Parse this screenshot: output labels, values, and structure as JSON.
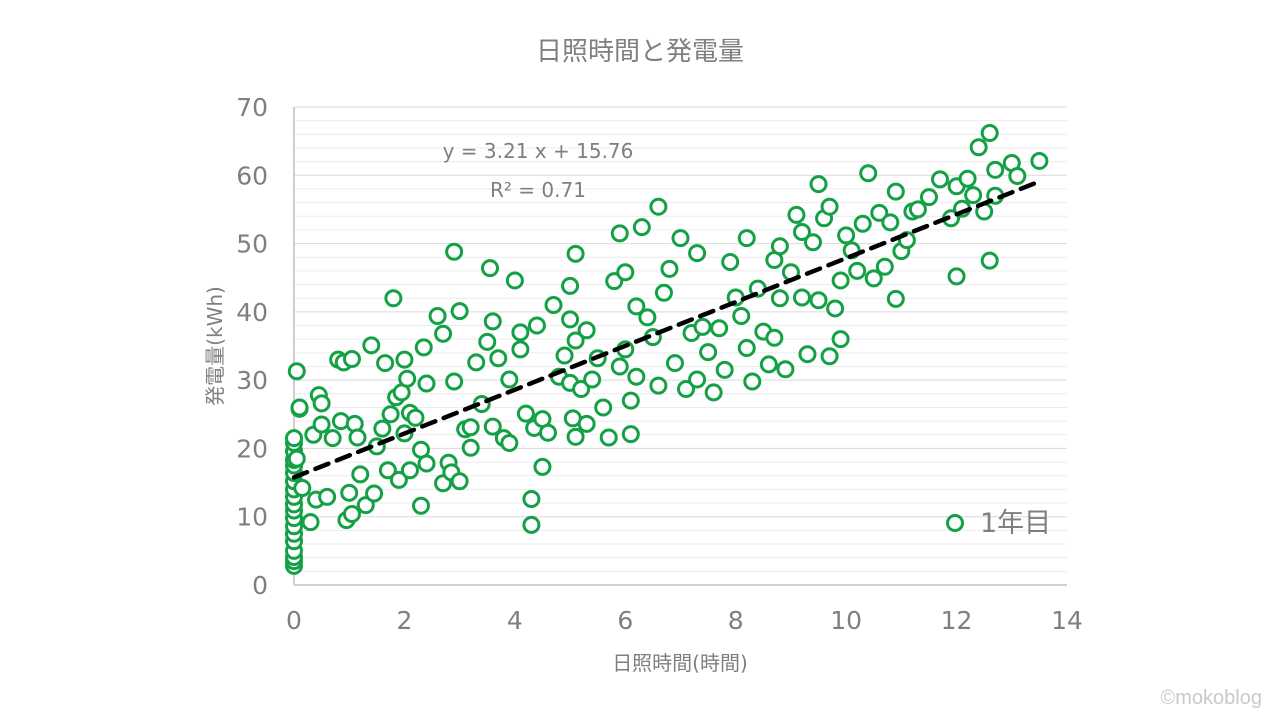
{
  "watermark": "©mokoblog",
  "colors": {
    "marker": "#14a045",
    "trend": "#000000",
    "grid_major": "#d9d9d9",
    "grid_minor": "#ececec",
    "axis": "#bfbfbf",
    "text": "#7f7f7f"
  },
  "chart_data": {
    "type": "scatter",
    "title": "日照時間と発電量",
    "xlabel": "日照時間(時間)",
    "ylabel": "発電量(kWh)",
    "xlim": [
      0,
      14
    ],
    "ylim": [
      0,
      70
    ],
    "xticks": [
      0,
      2,
      4,
      6,
      8,
      10,
      12,
      14
    ],
    "yticks": [
      0,
      10,
      20,
      30,
      40,
      50,
      60,
      70
    ],
    "grid": true,
    "legend_position": "bottom-right",
    "trendline": {
      "style": "dashed",
      "slope": 3.21,
      "intercept": 15.76,
      "x_range": [
        0,
        13.5
      ]
    },
    "equation_label": "y = 3.21 x + 15.76",
    "r2_label": "R² = 0.71",
    "series": [
      {
        "name": "1年目",
        "points": [
          [
            0,
            2.8
          ],
          [
            0,
            3.5
          ],
          [
            0,
            4.1
          ],
          [
            0,
            5.0
          ],
          [
            0,
            6.4
          ],
          [
            0,
            7.5
          ],
          [
            0,
            8.6
          ],
          [
            0,
            9.8
          ],
          [
            0,
            10.9
          ],
          [
            0,
            11.8
          ],
          [
            0,
            12.9
          ],
          [
            0,
            14.0
          ],
          [
            0,
            15.2
          ],
          [
            0,
            16.4
          ],
          [
            0,
            17.5
          ],
          [
            0,
            18.3
          ],
          [
            0,
            19.6
          ],
          [
            0,
            20.8
          ],
          [
            0,
            21.5
          ],
          [
            0.05,
            31.3
          ],
          [
            0.05,
            18.5
          ],
          [
            0.1,
            25.8
          ],
          [
            0.1,
            26.0
          ],
          [
            0.15,
            14.2
          ],
          [
            0.3,
            9.2
          ],
          [
            0.35,
            22.0
          ],
          [
            0.4,
            12.5
          ],
          [
            0.45,
            27.8
          ],
          [
            0.5,
            26.6
          ],
          [
            0.5,
            23.5
          ],
          [
            0.6,
            12.9
          ],
          [
            0.7,
            21.5
          ],
          [
            0.8,
            33.0
          ],
          [
            0.85,
            24.0
          ],
          [
            0.9,
            32.6
          ],
          [
            0.95,
            9.5
          ],
          [
            1.0,
            13.5
          ],
          [
            1.05,
            10.4
          ],
          [
            1.05,
            33.1
          ],
          [
            1.1,
            23.6
          ],
          [
            1.15,
            21.6
          ],
          [
            1.2,
            16.2
          ],
          [
            1.3,
            11.7
          ],
          [
            1.4,
            35.1
          ],
          [
            1.45,
            13.4
          ],
          [
            1.5,
            20.3
          ],
          [
            1.6,
            22.9
          ],
          [
            1.65,
            32.5
          ],
          [
            1.7,
            16.8
          ],
          [
            1.75,
            25.0
          ],
          [
            1.8,
            42.0
          ],
          [
            1.85,
            27.5
          ],
          [
            1.9,
            15.4
          ],
          [
            1.95,
            28.2
          ],
          [
            2.0,
            22.2
          ],
          [
            2.0,
            33.0
          ],
          [
            2.05,
            30.2
          ],
          [
            2.1,
            16.8
          ],
          [
            2.1,
            25.2
          ],
          [
            2.2,
            24.5
          ],
          [
            2.3,
            19.8
          ],
          [
            2.3,
            11.6
          ],
          [
            2.35,
            34.8
          ],
          [
            2.4,
            29.5
          ],
          [
            2.4,
            17.8
          ],
          [
            2.6,
            39.4
          ],
          [
            2.7,
            14.9
          ],
          [
            2.7,
            36.8
          ],
          [
            2.8,
            17.9
          ],
          [
            2.85,
            16.5
          ],
          [
            2.9,
            48.8
          ],
          [
            2.9,
            29.8
          ],
          [
            3.0,
            40.1
          ],
          [
            3.0,
            15.2
          ],
          [
            3.1,
            22.8
          ],
          [
            3.2,
            23.1
          ],
          [
            3.2,
            20.1
          ],
          [
            3.3,
            32.6
          ],
          [
            3.4,
            26.5
          ],
          [
            3.5,
            35.6
          ],
          [
            3.55,
            46.4
          ],
          [
            3.6,
            38.6
          ],
          [
            3.6,
            23.2
          ],
          [
            3.7,
            33.2
          ],
          [
            3.8,
            21.5
          ],
          [
            3.9,
            30.1
          ],
          [
            3.9,
            20.8
          ],
          [
            4.0,
            44.6
          ],
          [
            4.1,
            34.5
          ],
          [
            4.1,
            37.0
          ],
          [
            4.2,
            25.1
          ],
          [
            4.3,
            12.6
          ],
          [
            4.3,
            8.8
          ],
          [
            4.35,
            23.0
          ],
          [
            4.4,
            38.0
          ],
          [
            4.5,
            24.3
          ],
          [
            4.5,
            17.3
          ],
          [
            4.6,
            22.3
          ],
          [
            4.7,
            41.0
          ],
          [
            4.8,
            30.5
          ],
          [
            4.9,
            33.6
          ],
          [
            5.0,
            43.8
          ],
          [
            5.0,
            38.9
          ],
          [
            5.0,
            29.6
          ],
          [
            5.05,
            24.4
          ],
          [
            5.1,
            48.5
          ],
          [
            5.1,
            35.8
          ],
          [
            5.1,
            21.7
          ],
          [
            5.2,
            28.7
          ],
          [
            5.3,
            23.6
          ],
          [
            5.3,
            37.3
          ],
          [
            5.4,
            30.1
          ],
          [
            5.5,
            33.2
          ],
          [
            5.6,
            26.0
          ],
          [
            5.7,
            21.6
          ],
          [
            5.8,
            44.5
          ],
          [
            5.9,
            51.5
          ],
          [
            5.9,
            32.0
          ],
          [
            6.0,
            45.8
          ],
          [
            6.0,
            34.5
          ],
          [
            6.1,
            22.1
          ],
          [
            6.1,
            27.0
          ],
          [
            6.2,
            30.5
          ],
          [
            6.2,
            40.8
          ],
          [
            6.3,
            52.4
          ],
          [
            6.4,
            39.2
          ],
          [
            6.5,
            36.3
          ],
          [
            6.6,
            55.4
          ],
          [
            6.6,
            29.2
          ],
          [
            6.7,
            42.8
          ],
          [
            6.8,
            46.3
          ],
          [
            6.9,
            32.5
          ],
          [
            7.0,
            50.8
          ],
          [
            7.1,
            28.7
          ],
          [
            7.2,
            36.9
          ],
          [
            7.3,
            30.1
          ],
          [
            7.3,
            48.6
          ],
          [
            7.4,
            37.8
          ],
          [
            7.5,
            34.1
          ],
          [
            7.6,
            28.2
          ],
          [
            7.7,
            37.6
          ],
          [
            7.8,
            31.5
          ],
          [
            7.9,
            47.3
          ],
          [
            8.0,
            42.1
          ],
          [
            8.1,
            39.4
          ],
          [
            8.2,
            50.8
          ],
          [
            8.2,
            34.7
          ],
          [
            8.3,
            29.8
          ],
          [
            8.4,
            43.4
          ],
          [
            8.5,
            37.1
          ],
          [
            8.6,
            32.3
          ],
          [
            8.7,
            47.6
          ],
          [
            8.7,
            36.2
          ],
          [
            8.8,
            42.0
          ],
          [
            8.8,
            49.6
          ],
          [
            8.9,
            31.6
          ],
          [
            9.0,
            45.8
          ],
          [
            9.1,
            54.2
          ],
          [
            9.2,
            42.1
          ],
          [
            9.2,
            51.7
          ],
          [
            9.3,
            33.8
          ],
          [
            9.4,
            50.2
          ],
          [
            9.5,
            58.7
          ],
          [
            9.5,
            41.7
          ],
          [
            9.6,
            53.7
          ],
          [
            9.7,
            33.5
          ],
          [
            9.7,
            55.4
          ],
          [
            9.8,
            40.5
          ],
          [
            9.9,
            44.6
          ],
          [
            9.9,
            36.0
          ],
          [
            10.0,
            51.2
          ],
          [
            10.1,
            49.0
          ],
          [
            10.2,
            46.0
          ],
          [
            10.3,
            52.9
          ],
          [
            10.4,
            60.3
          ],
          [
            10.5,
            44.9
          ],
          [
            10.6,
            54.5
          ],
          [
            10.7,
            46.6
          ],
          [
            10.8,
            53.1
          ],
          [
            10.9,
            41.9
          ],
          [
            10.9,
            57.6
          ],
          [
            11.0,
            48.9
          ],
          [
            11.1,
            50.5
          ],
          [
            11.2,
            54.7
          ],
          [
            11.3,
            55.0
          ],
          [
            11.5,
            56.8
          ],
          [
            11.7,
            59.4
          ],
          [
            11.9,
            53.7
          ],
          [
            12.0,
            45.2
          ],
          [
            12.0,
            58.4
          ],
          [
            12.1,
            55.1
          ],
          [
            12.2,
            59.5
          ],
          [
            12.3,
            57.1
          ],
          [
            12.4,
            64.1
          ],
          [
            12.5,
            54.7
          ],
          [
            12.6,
            66.2
          ],
          [
            12.6,
            47.5
          ],
          [
            12.7,
            57.0
          ],
          [
            12.7,
            60.8
          ],
          [
            13.0,
            61.8
          ],
          [
            13.1,
            59.9
          ],
          [
            13.5,
            62.1
          ]
        ]
      }
    ]
  }
}
